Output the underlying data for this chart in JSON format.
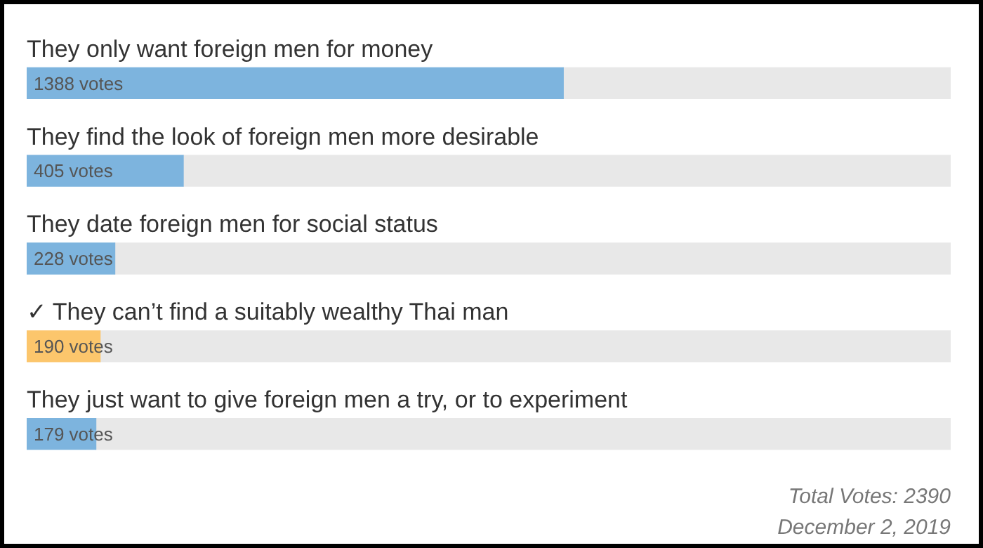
{
  "chart_data": {
    "type": "bar",
    "orientation": "horizontal",
    "stacked": true,
    "categories": [
      "They only want foreign men for money",
      "They find the look of foreign men more desirable",
      "They date foreign men for social status",
      "✓ They can’t find a suitably wealthy Thai man",
      "They just want to give foreign men a try, or to experiment"
    ],
    "series": [
      {
        "colors": [
          "#7db4de",
          "#7db4de",
          "#7db4de",
          "#fcc66c",
          "#7db4de"
        ],
        "values": [
          1388,
          405,
          228,
          190,
          179
        ],
        "value_labels": [
          "1388 votes",
          "405 votes",
          "228 votes",
          "190 votes",
          "179 votes"
        ]
      },
      {
        "color": "#e8e8e8",
        "values": [
          1002,
          1985,
          2162,
          2200,
          2211
        ]
      }
    ],
    "xlim": [
      0,
      2390
    ],
    "tick_labels": false,
    "annotations": [
      "Total Votes: 2390",
      "December 2, 2019"
    ]
  }
}
